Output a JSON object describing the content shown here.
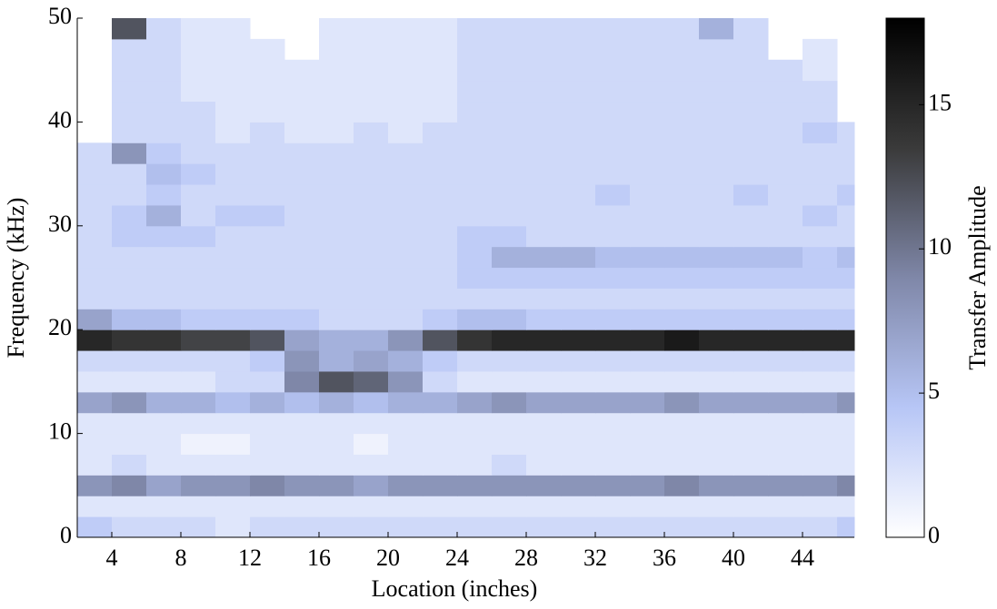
{
  "chart_data": {
    "type": "heatmap",
    "x_label": "Location (inches)",
    "y_label": "Frequency (kHz)",
    "colorbar_label": "Transfer Amplitude",
    "xbins": [
      2,
      4,
      6,
      8,
      10,
      12,
      14,
      16,
      18,
      20,
      22,
      24,
      26,
      28,
      30,
      32,
      34,
      36,
      38,
      40,
      42,
      44,
      46,
      47
    ],
    "ybins": [
      0,
      2,
      4,
      6,
      8,
      10,
      12,
      14,
      16,
      18,
      20,
      22,
      24,
      26,
      28,
      30,
      32,
      34,
      36,
      38,
      40,
      42,
      44,
      46,
      48,
      50
    ],
    "xlim": [
      2,
      47
    ],
    "ylim": [
      0,
      50
    ],
    "xticks": [
      4,
      8,
      12,
      16,
      20,
      24,
      28,
      32,
      36,
      40,
      44
    ],
    "yticks": [
      0,
      10,
      20,
      30,
      40,
      50
    ],
    "clim": [
      0,
      18
    ],
    "cticks": [
      0,
      5,
      10,
      15
    ],
    "colormap": [
      "#ffffff",
      "#b7c6f6",
      "#7f87a8",
      "#3a3a3a",
      "#000000"
    ],
    "z": [
      [
        4,
        3,
        3,
        3,
        2,
        3,
        3,
        3,
        3,
        3,
        3,
        3,
        3,
        3,
        3,
        3,
        3,
        3,
        3,
        3,
        3,
        3,
        4
      ],
      [
        2,
        2,
        2,
        2,
        2,
        2,
        2,
        2,
        2,
        2,
        2,
        2,
        2,
        2,
        2,
        2,
        2,
        2,
        2,
        2,
        2,
        2,
        2
      ],
      [
        8,
        9,
        7,
        8,
        8,
        9,
        8,
        8,
        7,
        8,
        8,
        8,
        8,
        8,
        8,
        8,
        8,
        9,
        8,
        8,
        8,
        8,
        9
      ],
      [
        2,
        3,
        2,
        2,
        2,
        2,
        2,
        2,
        2,
        2,
        2,
        2,
        3,
        2,
        2,
        2,
        2,
        2,
        2,
        2,
        2,
        2,
        2
      ],
      [
        2,
        2,
        2,
        1,
        1,
        2,
        2,
        2,
        1,
        2,
        2,
        2,
        2,
        2,
        2,
        2,
        2,
        2,
        2,
        2,
        2,
        2,
        2
      ],
      [
        2,
        2,
        2,
        2,
        2,
        2,
        2,
        2,
        2,
        2,
        2,
        2,
        2,
        2,
        2,
        2,
        2,
        2,
        2,
        2,
        2,
        2,
        2
      ],
      [
        7,
        8,
        6,
        6,
        5,
        6,
        5,
        6,
        5,
        6,
        6,
        7,
        8,
        7,
        7,
        7,
        7,
        8,
        7,
        7,
        7,
        7,
        8
      ],
      [
        2,
        2,
        2,
        2,
        3,
        3,
        9,
        12,
        11,
        8,
        3,
        2,
        2,
        2,
        2,
        2,
        2,
        2,
        2,
        2,
        2,
        2,
        2
      ],
      [
        3,
        3,
        3,
        3,
        3,
        4,
        8,
        6,
        7,
        6,
        4,
        3,
        3,
        3,
        3,
        3,
        3,
        3,
        3,
        3,
        3,
        3,
        3
      ],
      [
        15,
        14,
        14,
        13,
        13,
        12,
        7,
        6,
        6,
        8,
        12,
        14,
        15,
        15,
        15,
        15,
        15,
        16,
        15,
        15,
        15,
        15,
        15
      ],
      [
        7,
        5,
        5,
        4,
        4,
        4,
        4,
        3,
        3,
        3,
        4,
        5,
        5,
        4,
        4,
        4,
        4,
        4,
        4,
        4,
        4,
        4,
        4
      ],
      [
        3,
        3,
        3,
        3,
        3,
        3,
        3,
        3,
        3,
        3,
        3,
        3,
        3,
        3,
        3,
        3,
        3,
        3,
        3,
        3,
        3,
        3,
        3
      ],
      [
        3,
        3,
        3,
        3,
        3,
        3,
        3,
        3,
        3,
        3,
        3,
        4,
        4,
        4,
        4,
        4,
        4,
        4,
        4,
        4,
        4,
        4,
        4
      ],
      [
        3,
        3,
        3,
        3,
        3,
        3,
        3,
        3,
        3,
        3,
        3,
        4,
        6,
        6,
        6,
        5,
        5,
        5,
        5,
        5,
        5,
        4,
        5
      ],
      [
        3,
        4,
        4,
        4,
        3,
        3,
        3,
        3,
        3,
        3,
        3,
        4,
        4,
        3,
        3,
        3,
        3,
        3,
        3,
        3,
        3,
        3,
        3
      ],
      [
        3,
        4,
        6,
        3,
        4,
        4,
        3,
        3,
        3,
        3,
        3,
        3,
        3,
        3,
        3,
        3,
        3,
        3,
        3,
        3,
        3,
        4,
        3
      ],
      [
        3,
        3,
        4,
        3,
        3,
        3,
        3,
        3,
        3,
        3,
        3,
        3,
        3,
        3,
        3,
        4,
        3,
        3,
        3,
        4,
        3,
        3,
        4
      ],
      [
        3,
        3,
        5,
        4,
        3,
        3,
        3,
        3,
        3,
        3,
        3,
        3,
        3,
        3,
        3,
        3,
        3,
        3,
        3,
        3,
        3,
        3,
        3
      ],
      [
        3,
        8,
        4,
        3,
        3,
        3,
        3,
        3,
        3,
        3,
        3,
        3,
        3,
        3,
        3,
        3,
        3,
        3,
        3,
        3,
        3,
        3,
        3
      ],
      [
        null,
        3,
        3,
        3,
        2,
        3,
        2,
        2,
        3,
        2,
        3,
        3,
        3,
        3,
        3,
        3,
        3,
        3,
        3,
        3,
        3,
        4,
        3
      ],
      [
        null,
        3,
        3,
        3,
        2,
        2,
        2,
        2,
        2,
        2,
        2,
        3,
        3,
        3,
        3,
        3,
        3,
        3,
        3,
        3,
        3,
        3,
        null
      ],
      [
        null,
        3,
        3,
        2,
        2,
        2,
        2,
        2,
        2,
        2,
        2,
        3,
        3,
        3,
        3,
        3,
        3,
        3,
        3,
        3,
        3,
        3,
        null
      ],
      [
        null,
        3,
        3,
        2,
        2,
        2,
        2,
        2,
        2,
        2,
        2,
        3,
        3,
        3,
        3,
        3,
        3,
        3,
        3,
        3,
        3,
        2,
        null
      ],
      [
        null,
        3,
        3,
        2,
        2,
        2,
        null,
        2,
        2,
        2,
        2,
        3,
        3,
        3,
        3,
        3,
        3,
        3,
        3,
        3,
        null,
        2,
        null
      ],
      [
        null,
        12,
        3,
        2,
        2,
        null,
        null,
        2,
        2,
        2,
        2,
        3,
        3,
        3,
        3,
        3,
        3,
        3,
        6,
        3,
        null,
        null,
        null
      ]
    ]
  }
}
